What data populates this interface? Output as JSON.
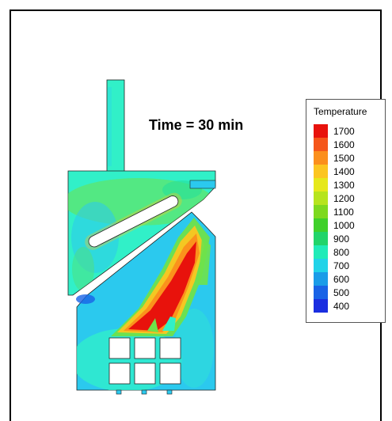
{
  "figure": {
    "annotation": "Time = 30 min"
  },
  "legend": {
    "title": "Temperature",
    "items": [
      {
        "value": "1700",
        "color": "#e8120c"
      },
      {
        "value": "1600",
        "color": "#f5561a"
      },
      {
        "value": "1500",
        "color": "#fb8f1c"
      },
      {
        "value": "1400",
        "color": "#fcc520"
      },
      {
        "value": "1300",
        "color": "#e6e81b"
      },
      {
        "value": "1200",
        "color": "#b6e41d"
      },
      {
        "value": "1100",
        "color": "#7dd91e"
      },
      {
        "value": "1000",
        "color": "#3fd02a"
      },
      {
        "value": "900",
        "color": "#21d46a"
      },
      {
        "value": "800",
        "color": "#20ebb8"
      },
      {
        "value": "700",
        "color": "#21d3e8"
      },
      {
        "value": "600",
        "color": "#1a9ce8"
      },
      {
        "value": "500",
        "color": "#1963e6"
      },
      {
        "value": "400",
        "color": "#1a2ee0"
      }
    ]
  },
  "palette": {
    "base": "#31f0c8",
    "cool": "#2bc9ee",
    "warm_green": "#6fe24a"
  }
}
